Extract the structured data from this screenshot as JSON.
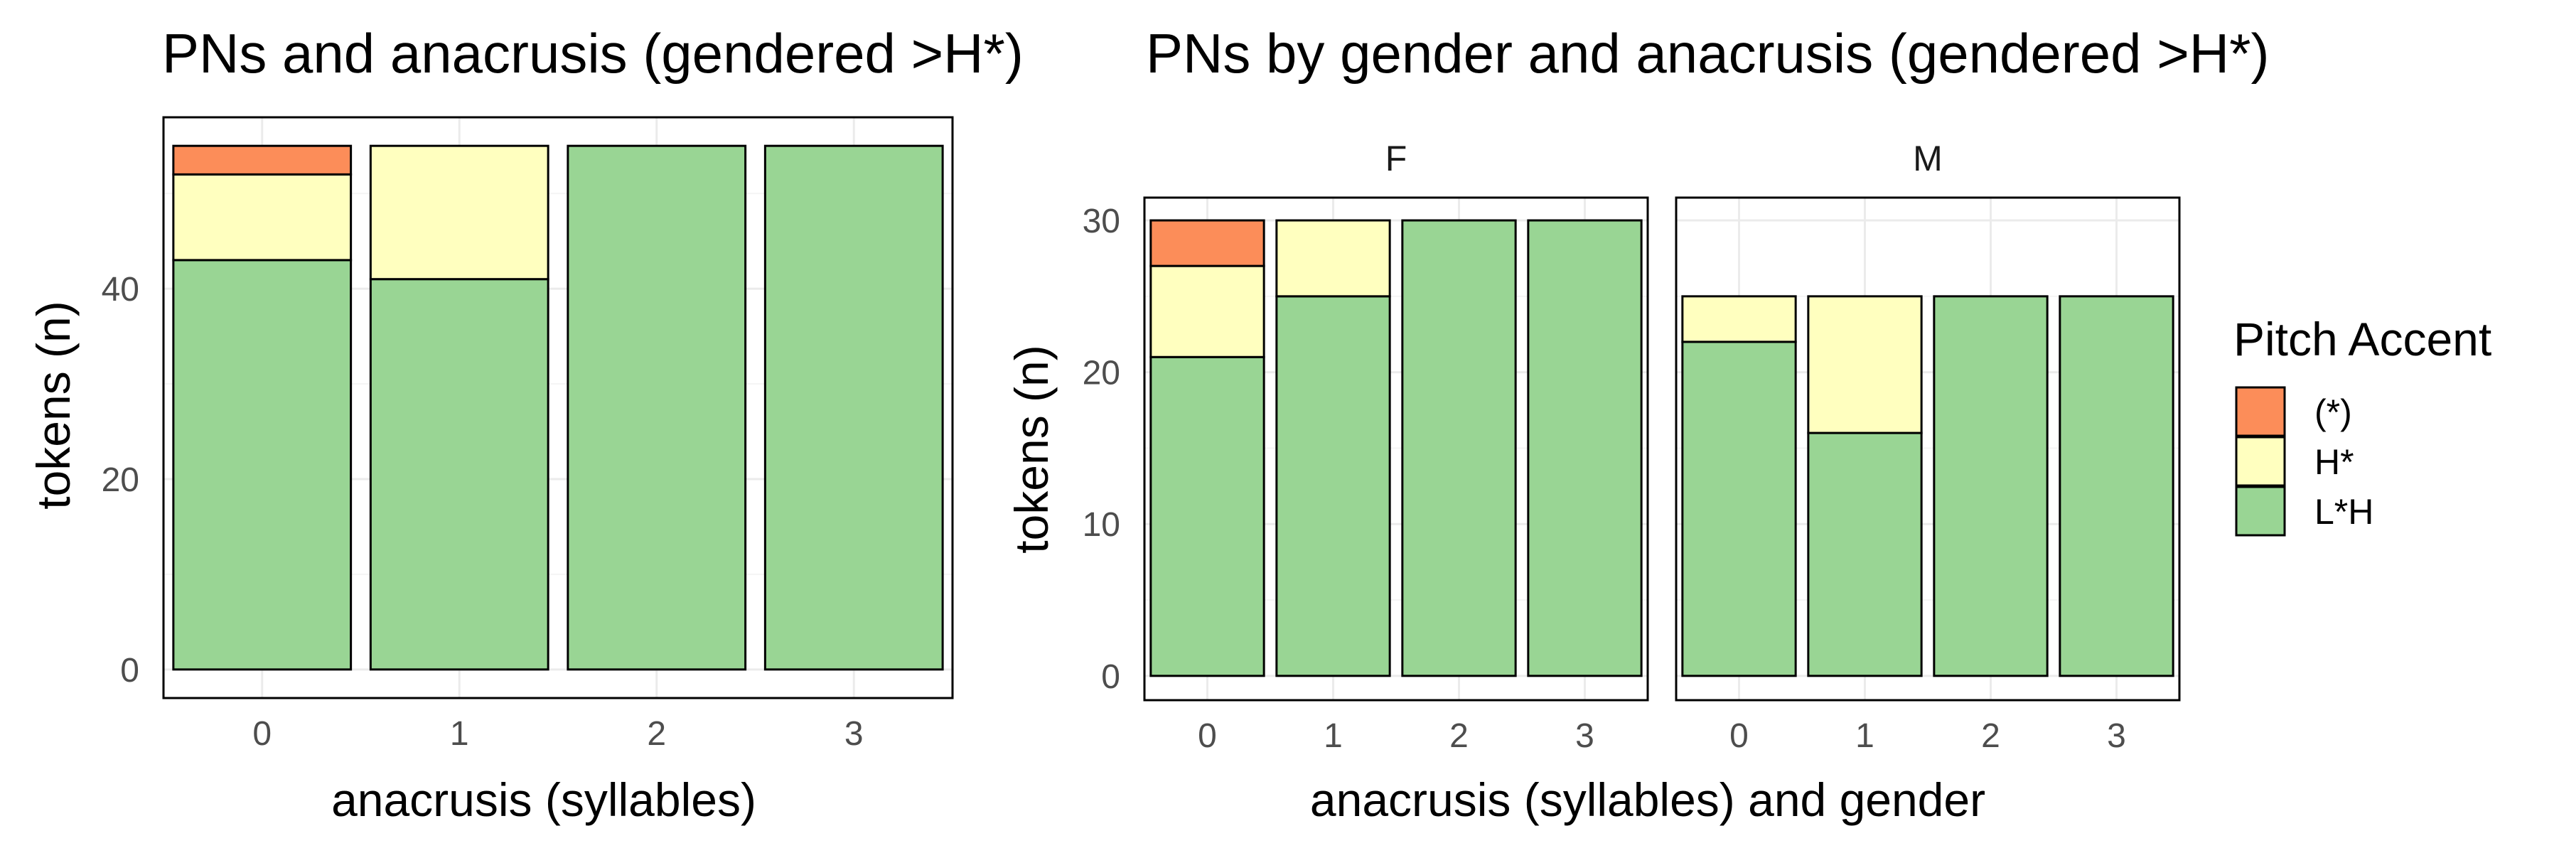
{
  "chart_data": [
    {
      "type": "bar",
      "stacked": true,
      "title": "PNs and anacrusis (gendered >H*)",
      "xlabel": "anacrusis (syllables)",
      "ylabel": "tokens (n)",
      "categories": [
        "0",
        "1",
        "2",
        "3"
      ],
      "ylim": [
        0,
        55
      ],
      "yticks": [
        0,
        20,
        40
      ],
      "grid": true,
      "series": [
        {
          "name": "L*H",
          "values": [
            43,
            41,
            55,
            55
          ]
        },
        {
          "name": "H*",
          "values": [
            9,
            14,
            0,
            0
          ]
        },
        {
          "name": "(*)",
          "values": [
            3,
            0,
            0,
            0
          ]
        }
      ]
    },
    {
      "type": "bar",
      "stacked": true,
      "title": "PNs by gender and anacrusis (gendered >H*)",
      "xlabel": "anacrusis (syllables) and gender",
      "ylabel": "tokens (n)",
      "ylim": [
        0,
        30
      ],
      "yticks": [
        0,
        10,
        20,
        30
      ],
      "grid": true,
      "facets": [
        {
          "label": "F",
          "categories": [
            "0",
            "1",
            "2",
            "3"
          ],
          "series": [
            {
              "name": "L*H",
              "values": [
                21,
                25,
                30,
                30
              ]
            },
            {
              "name": "H*",
              "values": [
                6,
                5,
                0,
                0
              ]
            },
            {
              "name": "(*)",
              "values": [
                3,
                0,
                0,
                0
              ]
            }
          ]
        },
        {
          "label": "M",
          "categories": [
            "0",
            "1",
            "2",
            "3"
          ],
          "series": [
            {
              "name": "L*H",
              "values": [
                22,
                16,
                25,
                25
              ]
            },
            {
              "name": "H*",
              "values": [
                3,
                9,
                0,
                0
              ]
            },
            {
              "name": "(*)",
              "values": [
                0,
                0,
                0,
                0
              ]
            }
          ]
        }
      ]
    }
  ],
  "legend": {
    "title": "Pitch Accent",
    "placement": "right",
    "items": [
      {
        "label": "(*)",
        "color": "#fc8d59"
      },
      {
        "label": "H*",
        "color": "#ffffbf"
      },
      {
        "label": "L*H",
        "color": "#99d594"
      }
    ]
  },
  "colors": {
    "(*)": "#fc8d59",
    "H*": "#ffffbf",
    "L*H": "#99d594"
  }
}
